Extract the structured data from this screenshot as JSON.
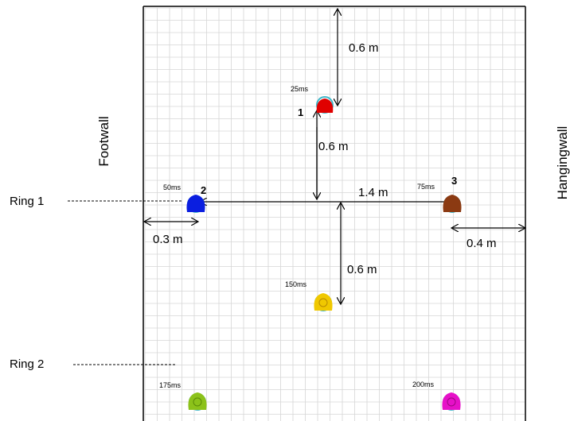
{
  "labels": {
    "footwall": "Footwall",
    "hangingwall": "Hangingwall",
    "ring1": "Ring 1",
    "ring2": "Ring 2"
  },
  "dimensions": {
    "top_to_hole1": "0.6 m",
    "hole1_to_ring1": "0.6 m",
    "ring1_to_hole4": "0.6 m",
    "hole2_to_hole3": "1.4 m",
    "footwall_to_hole2": "0.3 m",
    "hole3_to_hangingwall": "0.4 m"
  },
  "holes": [
    {
      "id": "hole-1",
      "number": "1",
      "delay": "25ms",
      "color": "#e00000",
      "ring_color": "#3fb7c9"
    },
    {
      "id": "hole-2",
      "number": "2",
      "delay": "50ms",
      "color": "#0a1ee0",
      "ring_color": "#3fb7c9"
    },
    {
      "id": "hole-3",
      "number": "3",
      "delay": "75ms",
      "color": "#8b3a12",
      "ring_color": "#3fb7c9"
    },
    {
      "id": "hole-4",
      "number": "",
      "delay": "150ms",
      "color": "#f0c800",
      "ring_color": "#3fb7c9"
    },
    {
      "id": "hole-5",
      "number": "",
      "delay": "175ms",
      "color": "#8cc21a",
      "ring_color": "#3fb7c9"
    },
    {
      "id": "hole-6",
      "number": "",
      "delay": "200ms",
      "color": "#e610c8",
      "ring_color": "#3fb7c9"
    }
  ]
}
